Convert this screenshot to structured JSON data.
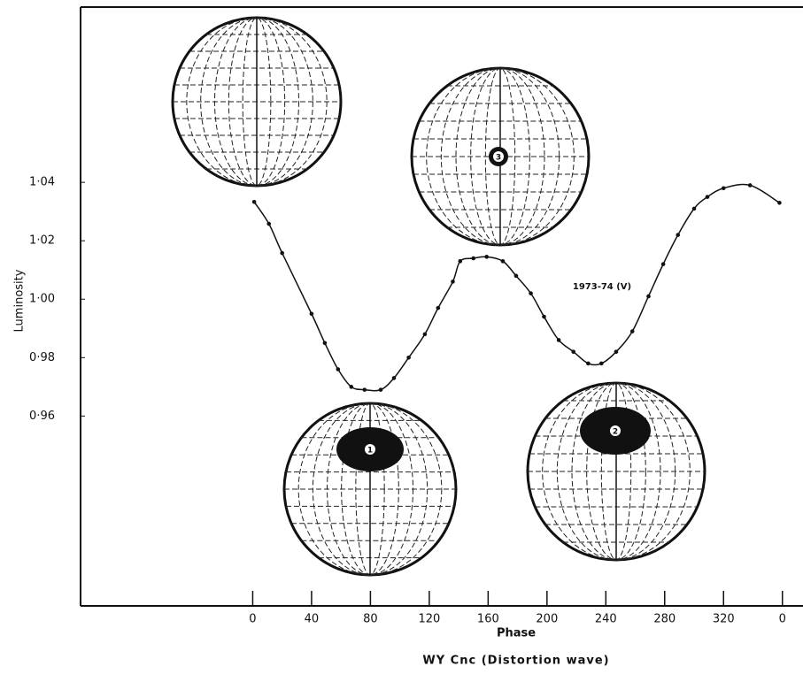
{
  "chart_data": {
    "type": "line",
    "x_label": "Phase",
    "y_label": "Luminosity",
    "caption": "WY Cnc (Distortion wave)",
    "spot_labels": [
      "1",
      "2",
      "3"
    ],
    "x": [
      1,
      11,
      20,
      40,
      49,
      58,
      67,
      76,
      87,
      96,
      106,
      117,
      126,
      136,
      141,
      150,
      159,
      170,
      179,
      189,
      198,
      208,
      218,
      228,
      237,
      247,
      258,
      269,
      279,
      289,
      300,
      309,
      320,
      338,
      358
    ],
    "series": [
      {
        "name": "1973-74 (V)",
        "color": "#111111",
        "values": [
          1.0333,
          1.0258,
          1.0158,
          0.995,
          0.985,
          0.976,
          0.97,
          0.969,
          0.969,
          0.973,
          0.98,
          0.988,
          0.997,
          1.006,
          1.013,
          1.014,
          1.0145,
          1.013,
          1.008,
          1.002,
          0.994,
          0.986,
          0.982,
          0.978,
          0.978,
          0.982,
          0.989,
          1.001,
          1.012,
          1.022,
          1.031,
          1.035,
          1.038,
          1.039,
          1.033
        ]
      }
    ],
    "xlim": [
      -117,
      374
    ],
    "ylim": [
      0.895,
      1.1
    ],
    "xticks": [
      0,
      40,
      80,
      120,
      160,
      200,
      240,
      280,
      320,
      {
        "value": 360,
        "label": "0"
      }
    ],
    "yticks": [
      {
        "value": 0.96,
        "label": "0·96"
      },
      {
        "value": 0.98,
        "label": "0·98"
      },
      {
        "value": 1.0,
        "label": "1·00"
      },
      {
        "value": 1.02,
        "label": "1·02"
      },
      {
        "value": 1.04,
        "label": "1·04"
      }
    ]
  }
}
